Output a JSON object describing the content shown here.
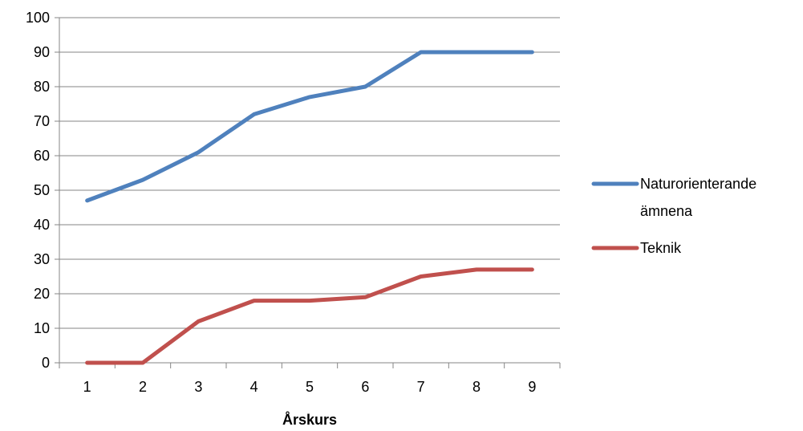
{
  "chart_data": {
    "type": "line",
    "x": [
      1,
      2,
      3,
      4,
      5,
      6,
      7,
      8,
      9
    ],
    "xlabel": "Årskurs",
    "ylabel": "",
    "ylim": [
      0,
      100
    ],
    "yticks": [
      0,
      10,
      20,
      30,
      40,
      50,
      60,
      70,
      80,
      90,
      100
    ],
    "grid": true,
    "legend_position": "right",
    "series": [
      {
        "name": "Naturorienterande ämnena",
        "name_lines": [
          "Naturorienterande",
          "ämnena"
        ],
        "color": "#4F81BD",
        "values": [
          47,
          53,
          61,
          72,
          77,
          80,
          90,
          90,
          90
        ]
      },
      {
        "name": "Teknik",
        "name_lines": [
          "Teknik"
        ],
        "color": "#C0504D",
        "values": [
          0,
          0,
          12,
          18,
          18,
          19,
          25,
          27,
          27
        ]
      }
    ]
  }
}
